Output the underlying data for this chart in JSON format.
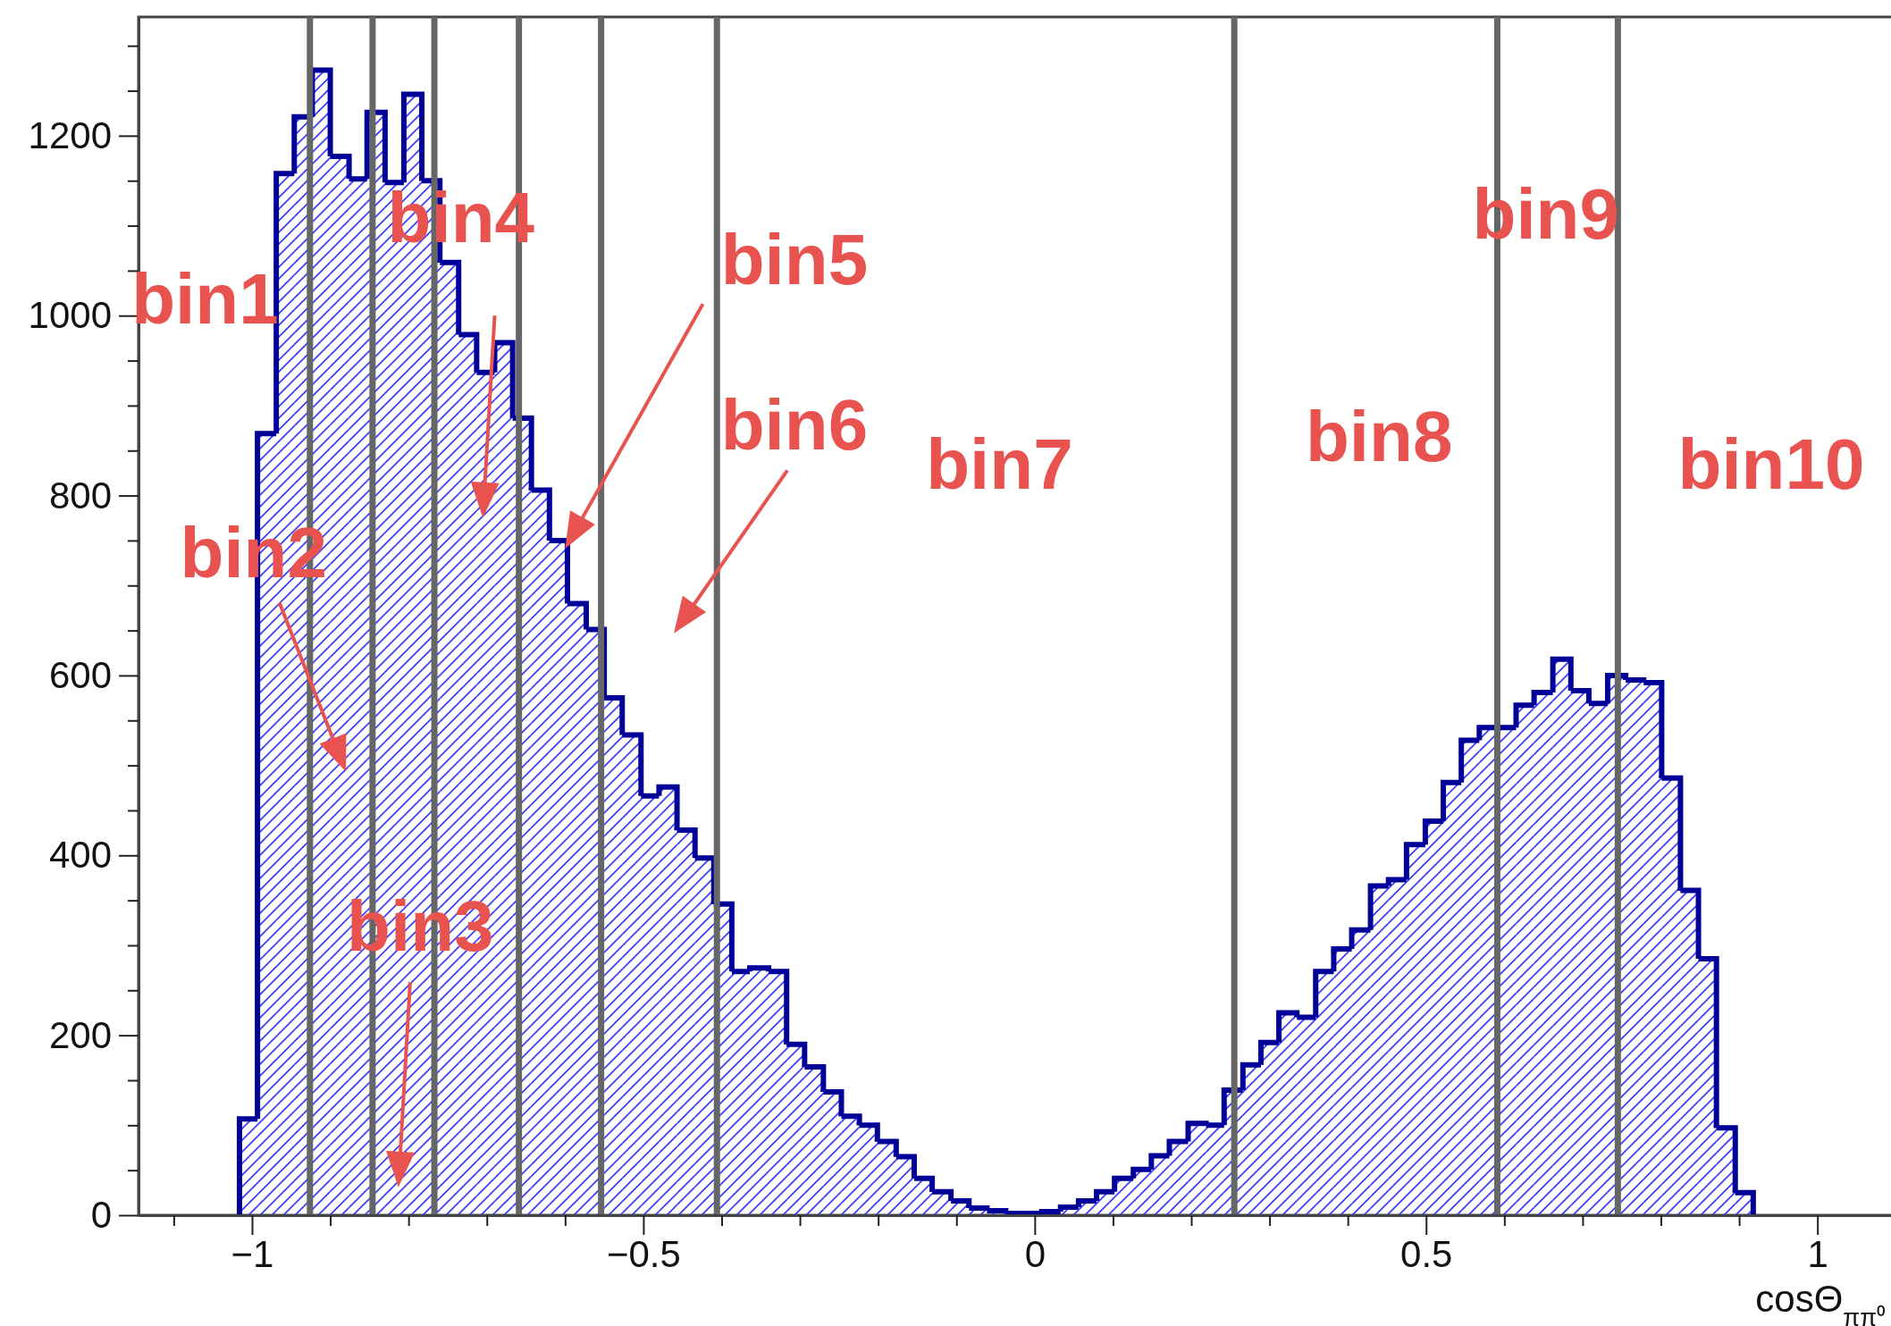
{
  "chart_data": {
    "type": "histogram",
    "xlabel": "cosΘ$_{ππ⁰}$",
    "color": "#000099",
    "bins": [
      -1.016,
      -0.993,
      -0.969,
      -0.946,
      -0.923,
      -0.9,
      -0.876,
      -0.853,
      -0.83,
      -0.806,
      -0.783,
      -0.76,
      -0.736,
      -0.713,
      -0.69,
      -0.667,
      -0.643,
      -0.62,
      -0.597,
      -0.573,
      -0.55,
      -0.527,
      -0.503,
      -0.48,
      -0.457,
      -0.434,
      -0.41,
      -0.387,
      -0.364,
      -0.34,
      -0.317,
      -0.294,
      -0.27,
      -0.247,
      -0.224,
      -0.201,
      -0.177,
      -0.154,
      -0.131,
      -0.107,
      -0.084,
      -0.061,
      -0.037,
      -0.014,
      0.009,
      0.033,
      0.056,
      0.079,
      0.102,
      0.126,
      0.149,
      0.172,
      0.196,
      0.219,
      0.242,
      0.266,
      0.289,
      0.312,
      0.335,
      0.359,
      0.382,
      0.405,
      0.429,
      0.452,
      0.475,
      0.499,
      0.522,
      0.545,
      0.568,
      0.592,
      0.615,
      0.638,
      0.662,
      0.685,
      0.708,
      0.732,
      0.755,
      0.778,
      0.801,
      0.825,
      0.848,
      0.871,
      0.895,
      0.918
    ],
    "values": [
      107,
      869,
      1158,
      1221,
      1273,
      1177,
      1152,
      1226,
      1148,
      1246,
      1150,
      1059,
      979,
      937,
      970,
      886,
      806,
      750,
      680,
      651,
      575,
      534,
      466,
      476,
      428,
      397,
      346,
      271,
      275,
      271,
      190,
      165,
      137,
      110,
      100,
      82,
      65,
      41,
      26,
      16,
      8,
      5,
      2,
      2,
      4,
      9,
      16,
      26,
      41,
      51,
      66,
      82,
      102,
      100,
      139,
      167,
      192,
      225,
      220,
      271,
      296,
      317,
      366,
      373,
      412,
      438,
      481,
      528,
      542,
      542,
      567,
      581,
      618,
      583,
      569,
      600,
      595,
      592,
      486,
      361,
      285,
      97,
      25
    ],
    "xlim": [
      -1.145,
      1.094
    ],
    "ylim": [
      0,
      1332
    ],
    "xticks": [
      {
        "value": -1.1,
        "label": null
      },
      -1,
      {
        "value": -0.9,
        "label": null
      },
      {
        "value": -0.8,
        "label": null
      },
      {
        "value": -0.7,
        "label": null
      },
      {
        "value": -0.6,
        "label": null
      },
      -0.5,
      {
        "value": -0.4,
        "label": null
      },
      {
        "value": -0.3,
        "label": null
      },
      {
        "value": -0.2,
        "label": null
      },
      {
        "value": -0.1,
        "label": null
      },
      0,
      {
        "value": 0.1,
        "label": null
      },
      {
        "value": 0.2,
        "label": null
      },
      {
        "value": 0.3,
        "label": null
      },
      {
        "value": 0.4,
        "label": null
      },
      0.5,
      {
        "value": 0.6,
        "label": null
      },
      {
        "value": 0.7,
        "label": null
      },
      {
        "value": 0.8,
        "label": null
      },
      {
        "value": 0.9,
        "label": null
      },
      1
    ],
    "yticks": [
      0,
      {
        "value": 50,
        "label": null
      },
      {
        "value": 100,
        "label": null
      },
      {
        "value": 150,
        "label": null
      },
      200,
      {
        "value": 250,
        "label": null
      },
      {
        "value": 300,
        "label": null
      },
      {
        "value": 350,
        "label": null
      },
      400,
      {
        "value": 450,
        "label": null
      },
      {
        "value": 500,
        "label": null
      },
      {
        "value": 550,
        "label": null
      },
      600,
      {
        "value": 650,
        "label": null
      },
      {
        "value": 700,
        "label": null
      },
      {
        "value": 750,
        "label": null
      },
      800,
      {
        "value": 850,
        "label": null
      },
      {
        "value": 900,
        "label": null
      },
      {
        "value": 950,
        "label": null
      },
      1000,
      {
        "value": 1050,
        "label": null
      },
      {
        "value": 1100,
        "label": null
      },
      {
        "value": 1150,
        "label": null
      },
      1200,
      {
        "value": 1250,
        "label": null
      },
      {
        "value": 1300,
        "label": null
      }
    ],
    "ref_lines": [
      {
        "axis": "x",
        "value": -0.926,
        "color": "#666666"
      },
      {
        "axis": "x",
        "value": -0.846,
        "color": "#666666"
      },
      {
        "axis": "x",
        "value": -0.767,
        "color": "#666666"
      },
      {
        "axis": "x",
        "value": -0.659,
        "color": "#666666"
      },
      {
        "axis": "x",
        "value": -0.554,
        "color": "#666666"
      },
      {
        "axis": "x",
        "value": -0.406,
        "color": "#666666"
      },
      {
        "axis": "x",
        "value": 0.255,
        "color": "#666666"
      },
      {
        "axis": "x",
        "value": 0.591,
        "color": "#666666"
      },
      {
        "axis": "x",
        "value": 0.745,
        "color": "#666666"
      }
    ],
    "annotations": [
      "bin1",
      {
        "text": "bin2",
        "x": -0.88,
        "y": 493
      },
      "bin3",
      "bin4",
      "bin5",
      "bin6",
      "bin7",
      "bin8",
      "bin9",
      "bin10"
    ]
  }
}
